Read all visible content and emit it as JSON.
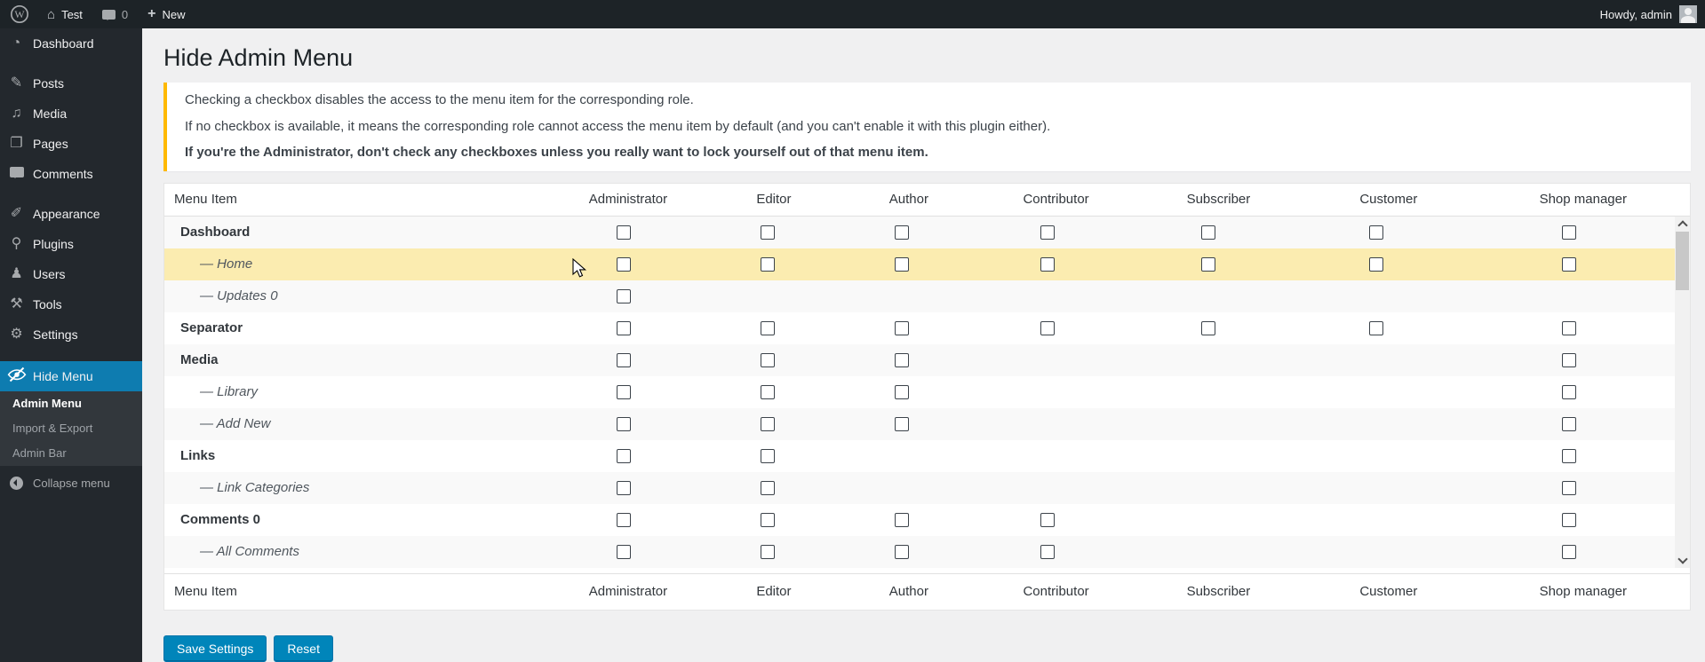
{
  "admin_bar": {
    "site_name": "Test",
    "comments_count": "0",
    "new_label": "New",
    "howdy": "Howdy, admin",
    "icons": {
      "home_glyph": "⌂",
      "plus_glyph": "+"
    }
  },
  "sidebar": {
    "items": [
      {
        "label": "Dashboard",
        "icon": "dashboard-gauge-icon",
        "glyph": "◔"
      },
      {
        "label": "Posts",
        "icon": "pushpin-icon",
        "glyph": "✎",
        "gap": true
      },
      {
        "label": "Media",
        "icon": "media-icon",
        "glyph": "♫"
      },
      {
        "label": "Pages",
        "icon": "pages-icon",
        "glyph": "❐"
      },
      {
        "label": "Comments",
        "icon": "comment-bubble-icon",
        "glyph": ""
      },
      {
        "label": "Appearance",
        "icon": "paintbrush-icon",
        "glyph": "✐",
        "gap": true
      },
      {
        "label": "Plugins",
        "icon": "plugin-icon",
        "glyph": "⚲"
      },
      {
        "label": "Users",
        "icon": "user-icon",
        "glyph": "♟"
      },
      {
        "label": "Tools",
        "icon": "wrench-icon",
        "glyph": "⚒"
      },
      {
        "label": "Settings",
        "icon": "settings-sliders-icon",
        "glyph": "⚙"
      },
      {
        "label": "Hide Menu",
        "icon": "hidden-eye-icon",
        "glyph": "",
        "active": true,
        "gap_large": true
      }
    ],
    "submenu": [
      "Admin Menu",
      "Import & Export",
      "Admin Bar"
    ],
    "collapse_label": "Collapse menu"
  },
  "main": {
    "title": "Hide Admin Menu",
    "notice_lines": [
      {
        "text": "Checking a checkbox disables the access to the menu item for the corresponding role.",
        "strong": false
      },
      {
        "text": "If no checkbox is available, it means the corresponding role cannot access the menu item by default (and you can't enable it with this plugin either).",
        "strong": false
      },
      {
        "text": "If you're the Administrator, don't check any checkboxes unless you really want to lock yourself out of that menu item.",
        "strong": true
      }
    ],
    "table": {
      "columns": [
        "Menu Item",
        "Administrator",
        "Editor",
        "Author",
        "Contributor",
        "Subscriber",
        "Customer",
        "Shop manager"
      ],
      "rows": [
        {
          "label": "Dashboard",
          "sub": false,
          "highlighted": false,
          "checks": [
            1,
            1,
            1,
            1,
            1,
            1,
            1
          ]
        },
        {
          "label": "— Home",
          "sub": true,
          "highlighted": true,
          "checks": [
            1,
            1,
            1,
            1,
            1,
            1,
            1
          ]
        },
        {
          "label": "— Updates 0",
          "sub": true,
          "highlighted": false,
          "checks": [
            1,
            0,
            0,
            0,
            0,
            0,
            0
          ]
        },
        {
          "label": "Separator",
          "sub": false,
          "highlighted": false,
          "checks": [
            1,
            1,
            1,
            1,
            1,
            1,
            1
          ]
        },
        {
          "label": "Media",
          "sub": false,
          "highlighted": false,
          "checks": [
            1,
            1,
            1,
            0,
            0,
            0,
            1
          ]
        },
        {
          "label": "— Library",
          "sub": true,
          "highlighted": false,
          "checks": [
            1,
            1,
            1,
            0,
            0,
            0,
            1
          ]
        },
        {
          "label": "— Add New",
          "sub": true,
          "highlighted": false,
          "checks": [
            1,
            1,
            1,
            0,
            0,
            0,
            1
          ]
        },
        {
          "label": "Links",
          "sub": false,
          "highlighted": false,
          "checks": [
            1,
            1,
            0,
            0,
            0,
            0,
            1
          ]
        },
        {
          "label": "— Link Categories",
          "sub": true,
          "highlighted": false,
          "checks": [
            1,
            1,
            0,
            0,
            0,
            0,
            1
          ]
        },
        {
          "label": "Comments 0",
          "sub": false,
          "highlighted": false,
          "checks": [
            1,
            1,
            1,
            1,
            0,
            0,
            1
          ]
        },
        {
          "label": "— All Comments",
          "sub": true,
          "highlighted": false,
          "checks": [
            1,
            1,
            1,
            1,
            0,
            0,
            1
          ]
        }
      ],
      "checkboxes_checked": false
    },
    "buttons": {
      "save": "Save Settings",
      "reset": "Reset"
    },
    "colors": {
      "accent_blue": "#0e7cb0",
      "button_blue": "#0085ba",
      "notice_border_yellow": "#ffb900",
      "highlight_row_yellow": "#fbecb0",
      "sidebar_bg": "#23282d",
      "adminbar_bg": "#1d2327"
    }
  }
}
